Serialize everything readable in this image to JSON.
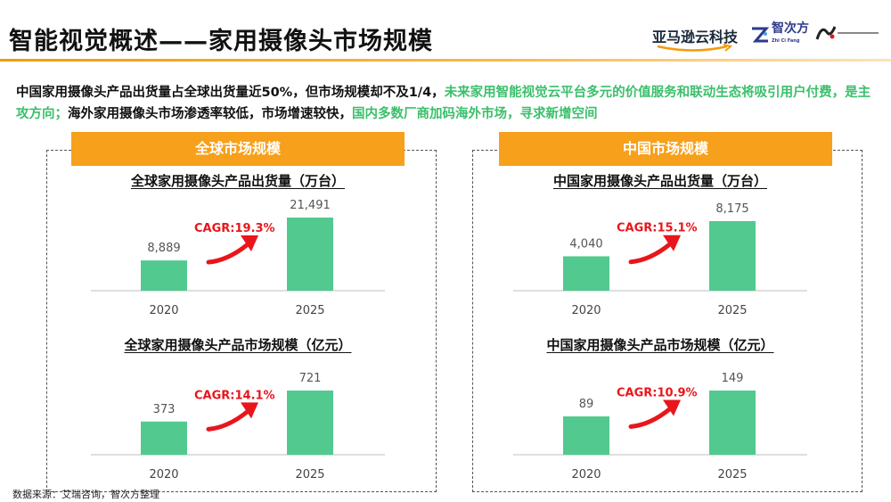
{
  "header": {
    "title": "智能视觉概述——家用摄像头市场规模",
    "logos": {
      "amazon": "亚马逊云科技",
      "zhici": "智次方",
      "zhici_sub": "Zhi Ci Fang"
    }
  },
  "summary": {
    "part1": "中国家用摄像头产品出货量占全球出货量近50%，但市场规模却不及1/4，",
    "part2": "未来家用智能视觉云平台多元的价值服务和联动生态将吸引用户付费，是主攻方向；",
    "part3": "海外家用摄像头市场渗透率较低，市场增速较快，",
    "part4": "国内多数厂商加码海外市场，寻求新增空间"
  },
  "panels": {
    "left": {
      "banner": "全球市场规模"
    },
    "right": {
      "banner": "中国市场规模"
    }
  },
  "source": "数据来源：艾瑞咨询，智次方整理",
  "colors": {
    "bar": "#52c98e",
    "cagr": "#e8161c",
    "accent": "#f7a01b"
  },
  "chart_data": [
    {
      "type": "bar",
      "title": "全球家用摄像头产品出货量（万台）",
      "categories": [
        "2020",
        "2025"
      ],
      "values": [
        8889,
        21491
      ],
      "labels": [
        "8,889",
        "21,491"
      ],
      "cagr": "CAGR:19.3%"
    },
    {
      "type": "bar",
      "title": "全球家用摄像头产品市场规模（亿元）",
      "categories": [
        "2020",
        "2025"
      ],
      "values": [
        373,
        721
      ],
      "labels": [
        "373",
        "721"
      ],
      "cagr": "CAGR:14.1%"
    },
    {
      "type": "bar",
      "title": "中国家用摄像头产品出货量（万台）",
      "categories": [
        "2020",
        "2025"
      ],
      "values": [
        4040,
        8175
      ],
      "labels": [
        "4,040",
        "8,175"
      ],
      "cagr": "CAGR:15.1%"
    },
    {
      "type": "bar",
      "title": "中国家用摄像头产品市场规模（亿元）",
      "categories": [
        "2020",
        "2025"
      ],
      "values": [
        89,
        149
      ],
      "labels": [
        "89",
        "149"
      ],
      "cagr": "CAGR:10.9%"
    }
  ]
}
